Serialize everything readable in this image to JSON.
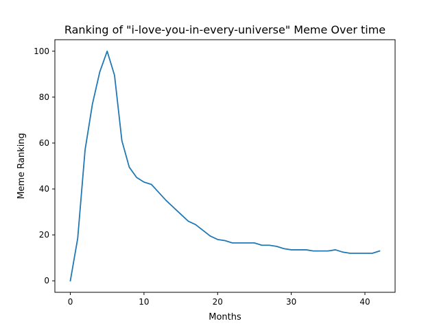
{
  "chart_data": {
    "type": "line",
    "title": "Ranking of \"i-love-you-in-every-universe\" Meme Over time",
    "xlabel": "Months",
    "ylabel": "Meme Ranking",
    "xlim": [
      -2.1,
      44.1
    ],
    "ylim": [
      -5,
      105
    ],
    "xticks": [
      0,
      10,
      20,
      30,
      40
    ],
    "yticks": [
      0,
      20,
      40,
      60,
      80,
      100
    ],
    "grid": false,
    "series": [
      {
        "color": "#1f77b4",
        "x": [
          0,
          1,
          2,
          3,
          4,
          5,
          6,
          7,
          8,
          9,
          10,
          11,
          12,
          13,
          14,
          15,
          16,
          17,
          18,
          19,
          20,
          21,
          22,
          23,
          24,
          25,
          26,
          27,
          28,
          29,
          30,
          31,
          32,
          33,
          34,
          35,
          36,
          37,
          38,
          39,
          40,
          41,
          42
        ],
        "y": [
          0,
          18.5,
          57,
          77,
          91,
          100,
          89.5,
          61,
          49.5,
          45,
          43,
          42,
          38.5,
          35,
          32,
          29,
          26,
          24.5,
          22,
          19.5,
          18,
          17.5,
          16.5,
          16.5,
          16.5,
          16.5,
          15.5,
          15.5,
          15,
          14,
          13.5,
          13.5,
          13.5,
          13,
          13,
          13,
          13.5,
          12.5,
          12,
          12,
          12,
          12,
          13
        ]
      }
    ]
  }
}
